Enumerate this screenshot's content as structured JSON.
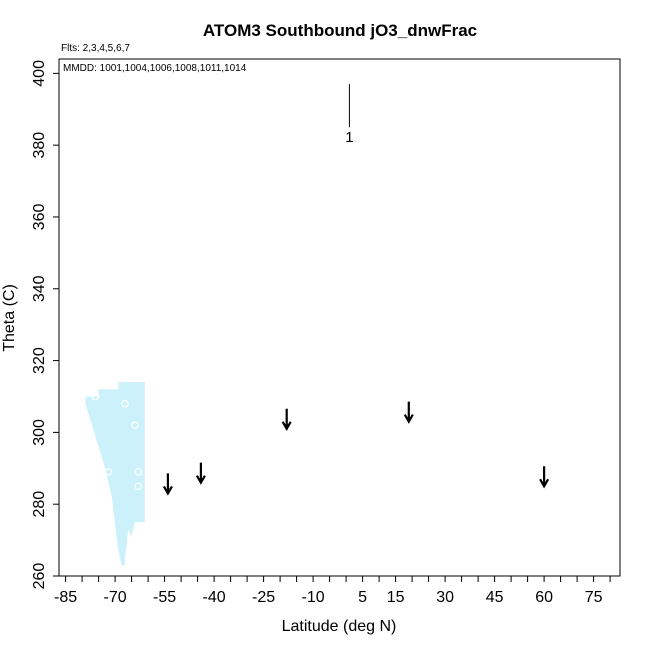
{
  "chart_data": {
    "type": "scatter",
    "title": "ATOM3 Southbound jO3_dnwFrac",
    "flights_note": "Flts: 2,3,4,5,6,7",
    "dates_note": "MMDD: 1001,1004,1006,1008,1011,1014",
    "xlabel": "Latitude (deg N)",
    "ylabel": "Theta (C)",
    "xlim": [
      -87,
      83
    ],
    "ylim": [
      260,
      404
    ],
    "x_ticks": [
      -85,
      -70,
      -55,
      -40,
      -25,
      -10,
      5,
      15,
      30,
      45,
      60,
      75
    ],
    "x_minor_step": 5,
    "y_ticks": [
      260,
      280,
      300,
      320,
      340,
      360,
      380,
      400
    ],
    "grid": false,
    "colors": {
      "fill": "#cdf1fb",
      "marker": "#ffffff",
      "axis": "#000000"
    },
    "shaded_region": {
      "upper": [
        [
          -79,
          310
        ],
        [
          -75,
          310
        ],
        [
          -75,
          312
        ],
        [
          -69,
          312
        ],
        [
          -69,
          314
        ],
        [
          -61,
          314
        ],
        [
          -61,
          313
        ]
      ],
      "lower": [
        [
          -79,
          308
        ],
        [
          -77,
          302
        ],
        [
          -75,
          296
        ],
        [
          -73,
          290
        ],
        [
          -71,
          282
        ],
        [
          -70,
          274
        ],
        [
          -69,
          267
        ],
        [
          -68,
          263
        ],
        [
          -67,
          263
        ],
        [
          -67,
          265
        ],
        [
          -66,
          273
        ],
        [
          -65,
          271
        ],
        [
          -64,
          275
        ],
        [
          -61,
          275
        ]
      ]
    },
    "open_circles": [
      [
        -76,
        310
      ],
      [
        -72,
        289
      ],
      [
        -67,
        308
      ],
      [
        -64,
        302
      ],
      [
        -63,
        289
      ],
      [
        -63,
        285
      ]
    ],
    "arrows": [
      [
        -54,
        283
      ],
      [
        -44,
        286
      ],
      [
        -18,
        301
      ],
      [
        19,
        303
      ],
      [
        60,
        285
      ]
    ],
    "flight_markers": [
      {
        "label": "1",
        "x": 1,
        "y_top": 397,
        "y_bottom": 385
      }
    ]
  }
}
